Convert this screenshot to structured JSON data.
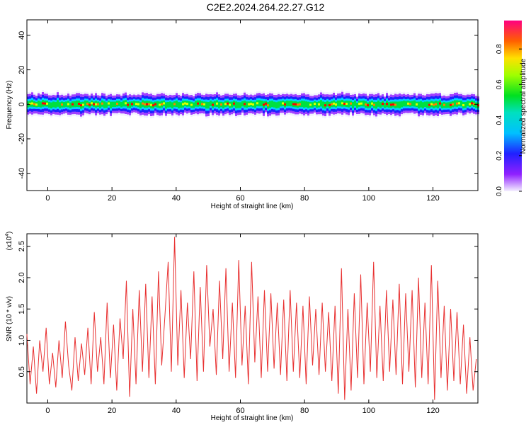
{
  "title": "C2E2.2024.264.22.27.G12",
  "colorbar": {
    "label": "Normalized spectral amplitude",
    "ticks": [
      "0.0",
      "0.2",
      "0.4",
      "0.6",
      "0.8"
    ],
    "tick_values": [
      0.0,
      0.2,
      0.4,
      0.6,
      0.8
    ],
    "range": [
      0,
      0.96
    ]
  },
  "chart_data": [
    {
      "type": "heatmap",
      "xlabel": "Height of straight line (km)",
      "ylabel": "Frequency (Hz)",
      "xlim": [
        -6.5,
        134
      ],
      "ylim": [
        -50,
        49
      ],
      "x_ticks": [
        0,
        20,
        40,
        60,
        80,
        100,
        120
      ],
      "y_ticks": [
        -40,
        -20,
        0,
        20,
        40
      ],
      "y_tick_labels": [
        "-40",
        "-20",
        "0",
        "20",
        "40"
      ],
      "band_center_hz": 0,
      "band_halfwidth_hz": 5,
      "colormap": [
        "#f0f0ff",
        "#a040ff",
        "#2020ff",
        "#00d0ff",
        "#00e040",
        "#e0ff00",
        "#ff8000",
        "#ff0000"
      ]
    },
    {
      "type": "line",
      "xlabel": "Height of straight line (km)",
      "ylabel": "SNR (10 * v/v)",
      "y_multiplier_label": "(x10",
      "y_multiplier_exp": "4",
      "xlim": [
        -6.5,
        134
      ],
      "ylim": [
        0,
        2.7
      ],
      "x_ticks": [
        0,
        20,
        40,
        60,
        80,
        100,
        120
      ],
      "y_ticks": [
        0.5,
        1.0,
        1.5,
        2.0,
        2.5
      ],
      "y_tick_labels": [
        "0.5",
        "1.0",
        "1.5",
        "2.0",
        "2.5"
      ],
      "color": "#e83030",
      "series": [
        {
          "x": [
            -6.5,
            -5.5,
            -4.5,
            -3.5,
            -2.5,
            -1.5,
            -0.5,
            0.5,
            1.5,
            2.5,
            3.5,
            4.5,
            5.5,
            6.5,
            7.5,
            8.5,
            9.5,
            10.5,
            11.5,
            12.5,
            13.5,
            14.5,
            15.5,
            16.5,
            17.5,
            18.5,
            19.5,
            20.5,
            21.5,
            22.5,
            23.5,
            24.5,
            25.5,
            26.5,
            27.5,
            28.5,
            29.5,
            30.5,
            31.5,
            32.5,
            33.5,
            34.5,
            35.5,
            36.5,
            37.5,
            38.5,
            39.5,
            40.5,
            41.5,
            42.5,
            43.5,
            44.5,
            45.5,
            46.5,
            47.5,
            48.5,
            49.5,
            50.5,
            51.5,
            52.5,
            53.5,
            54.5,
            55.5,
            56.5,
            57.5,
            58.5,
            59.5,
            60.5,
            61.5,
            62.5,
            63.5,
            64.5,
            65.5,
            66.5,
            67.5,
            68.5,
            69.5,
            70.5,
            71.5,
            72.5,
            73.5,
            74.5,
            75.5,
            76.5,
            77.5,
            78.5,
            79.5,
            80.5,
            81.5,
            82.5,
            83.5,
            84.5,
            85.5,
            86.5,
            87.5,
            88.5,
            89.5,
            90.5,
            91.5,
            92.5,
            93.5,
            94.5,
            95.5,
            96.5,
            97.5,
            98.5,
            99.5,
            100.5,
            101.5,
            102.5,
            103.5,
            104.5,
            105.5,
            106.5,
            107.5,
            108.5,
            109.5,
            110.5,
            111.5,
            112.5,
            113.5,
            114.5,
            115.5,
            116.5,
            117.5,
            118.5,
            119.5,
            120.5,
            121.5,
            122.5,
            123.5,
            124.5,
            125.5,
            126.5,
            127.5,
            128.5,
            129.5,
            130.5,
            131.5,
            132.5,
            133.5
          ],
          "y": [
            1.1,
            0.3,
            0.9,
            0.15,
            1.0,
            0.5,
            1.2,
            0.3,
            0.8,
            0.25,
            1.0,
            0.4,
            1.3,
            0.6,
            0.2,
            1.05,
            0.35,
            0.95,
            0.45,
            1.2,
            0.3,
            1.45,
            0.5,
            1.05,
            0.3,
            1.6,
            0.4,
            1.25,
            0.2,
            1.35,
            0.7,
            1.95,
            0.1,
            1.5,
            0.3,
            1.8,
            0.5,
            1.9,
            0.4,
            1.7,
            0.3,
            2.1,
            0.6,
            1.4,
            2.25,
            0.5,
            2.65,
            0.6,
            1.8,
            0.4,
            1.6,
            0.7,
            2.1,
            0.35,
            1.85,
            0.5,
            2.2,
            0.9,
            1.5,
            0.45,
            1.95,
            0.7,
            2.15,
            0.5,
            1.6,
            0.4,
            2.28,
            0.6,
            1.55,
            0.3,
            2.25,
            0.65,
            1.7,
            0.4,
            1.8,
            0.5,
            1.75,
            0.55,
            1.6,
            0.45,
            1.65,
            0.35,
            1.8,
            0.5,
            1.6,
            0.4,
            1.55,
            0.3,
            1.7,
            0.6,
            1.5,
            0.45,
            1.6,
            0.5,
            1.45,
            0.35,
            1.55,
            0.15,
            2.15,
            0.05,
            1.5,
            0.2,
            1.75,
            0.4,
            2.05,
            0.3,
            1.6,
            0.5,
            2.25,
            0.4,
            1.55,
            0.35,
            1.8,
            0.5,
            1.65,
            0.45,
            1.9,
            0.3,
            1.75,
            0.5,
            1.8,
            0.25,
            2.0,
            0.4,
            1.6,
            0.3,
            2.2,
            0.05,
            1.95,
            0.4,
            1.55,
            0.2,
            1.5,
            0.35,
            1.45,
            0.3,
            1.25,
            0.15,
            1.05,
            0.2,
            0.7
          ]
        }
      ]
    }
  ]
}
